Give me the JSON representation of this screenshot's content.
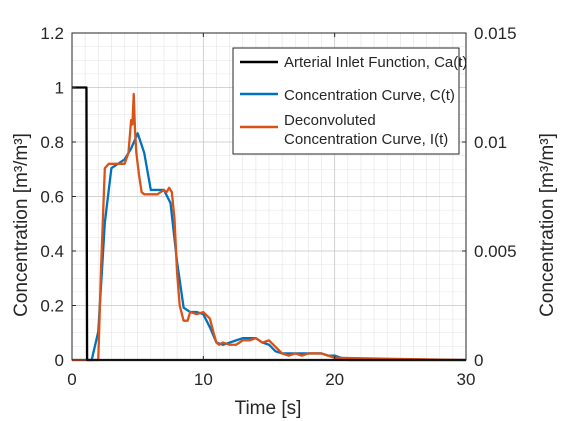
{
  "chart_data": {
    "type": "line",
    "xlabel": "Time [s]",
    "ylabel_left": "Concentration [m³/m³]",
    "ylabel_right": "Concentration [m³/m³]",
    "xlim": [
      0,
      30
    ],
    "ylim_left": [
      0,
      1.2
    ],
    "ylim_right": [
      0,
      0.015
    ],
    "x_ticks": [
      "0",
      "10",
      "20",
      "30"
    ],
    "y_left_ticks": [
      "0",
      "0.2",
      "0.4",
      "0.6",
      "0.8",
      "1",
      "1.2"
    ],
    "y_right_ticks": [
      "0",
      "0.005",
      "0.01",
      "0.015"
    ],
    "grid": "on (major and minor)",
    "legend_position": "top-right",
    "series": [
      {
        "name": "Arterial Inlet Function, Ca(t)",
        "color": "#000000",
        "axis": "left",
        "x": [
          0,
          1.1,
          1.15,
          30
        ],
        "y": [
          1,
          1,
          0,
          0
        ]
      },
      {
        "name": "Concentration Curve, C(t)",
        "color": "#0072BD",
        "axis": "right",
        "x": [
          0,
          1.5,
          2.0,
          2.5,
          3.0,
          3.5,
          4.0,
          4.5,
          5.0,
          5.5,
          6.0,
          6.5,
          7.0,
          7.5,
          8.0,
          8.5,
          9.0,
          9.5,
          10.0,
          10.5,
          11.0,
          11.5,
          12.0,
          12.5,
          13.0,
          13.5,
          14.0,
          14.5,
          15.0,
          15.5,
          16.0,
          16.5,
          17.0,
          17.5,
          18.0,
          18.5,
          19.0,
          19.5,
          20.0,
          20.5,
          21.0,
          21.5,
          30
        ],
        "y": [
          0,
          0,
          0.0013,
          0.0063,
          0.0088,
          0.009,
          0.0092,
          0.0097,
          0.0104,
          0.0095,
          0.0078,
          0.0078,
          0.0078,
          0.0072,
          0.0045,
          0.0024,
          0.0022,
          0.0022,
          0.0021,
          0.0015,
          0.0008,
          0.0007,
          0.0008,
          0.0009,
          0.001,
          0.001,
          0.001,
          0.0008,
          0.0007,
          0.0004,
          0.0003,
          0.0003,
          0.0003,
          0.0003,
          0.0003,
          0.0003,
          0.0003,
          0.0002,
          0.0002,
          0.0001,
          0,
          0,
          0
        ]
      },
      {
        "name": "Deconvoluted Concentration Curve, I(t)",
        "color": "#D95319",
        "axis": "right",
        "x": [
          0,
          1.6,
          2.0,
          2.2,
          2.5,
          2.8,
          3.0,
          3.5,
          4.0,
          4.3,
          4.5,
          4.6,
          4.7,
          4.8,
          4.9,
          5.1,
          5.3,
          5.5,
          5.7,
          6.0,
          6.5,
          7.0,
          7.2,
          7.4,
          7.6,
          7.8,
          8.0,
          8.2,
          8.5,
          8.8,
          9.0,
          9.5,
          10.0,
          10.5,
          10.8,
          11.0,
          11.2,
          11.5,
          12.0,
          12.5,
          13.0,
          13.5,
          14.0,
          14.5,
          15.0,
          15.5,
          16.0,
          16.5,
          17.0,
          17.5,
          18.0,
          18.5,
          19.0,
          19.5,
          20.0,
          30
        ],
        "y": [
          0,
          0,
          0,
          0.004,
          0.0088,
          0.009,
          0.009,
          0.009,
          0.009,
          0.0095,
          0.011,
          0.0108,
          0.0122,
          0.0105,
          0.0095,
          0.0085,
          0.0077,
          0.0076,
          0.0076,
          0.0076,
          0.0076,
          0.0078,
          0.0077,
          0.0079,
          0.0077,
          0.0065,
          0.004,
          0.0025,
          0.0018,
          0.0018,
          0.0022,
          0.0021,
          0.0022,
          0.0019,
          0.0012,
          0.0008,
          0.0007,
          0.0008,
          0.0007,
          0.0007,
          0.0009,
          0.0009,
          0.001,
          0.0008,
          0.0009,
          0.0006,
          0.0003,
          0.0002,
          0.0003,
          0.0002,
          0.0003,
          0.0003,
          0.0003,
          0.0002,
          0.0001,
          0
        ]
      }
    ]
  }
}
